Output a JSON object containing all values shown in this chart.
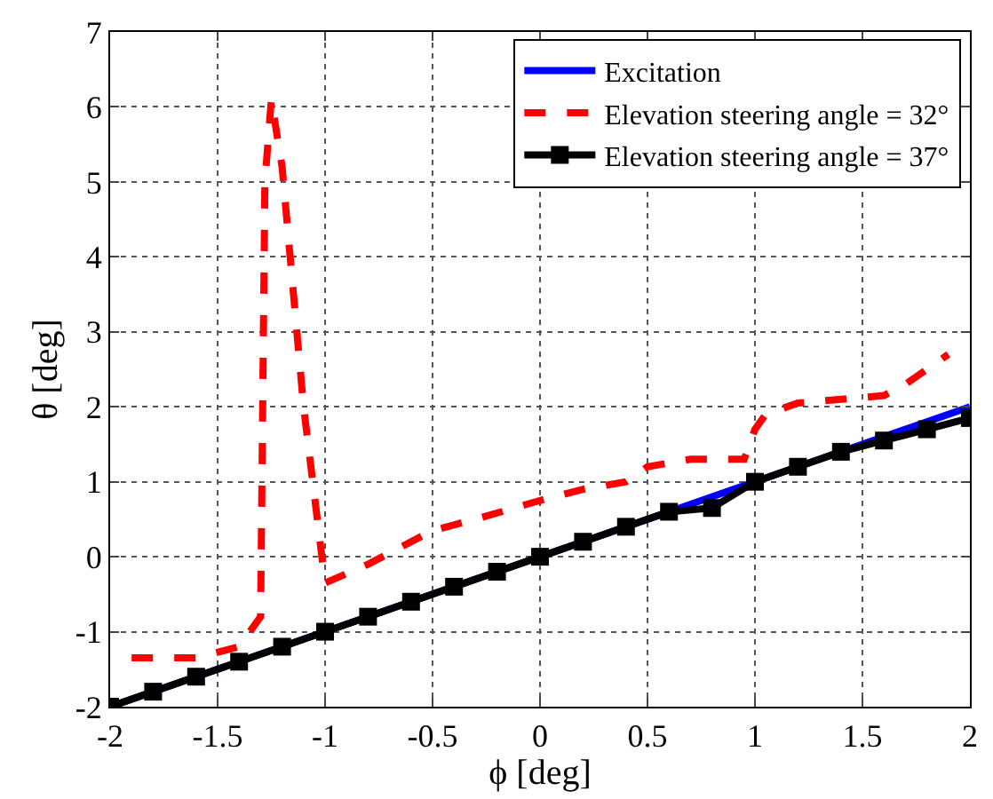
{
  "chart_data": {
    "type": "line",
    "xlabel": "ϕ [deg]",
    "ylabel": "θ [deg]",
    "xlim": [
      -2,
      2
    ],
    "ylim": [
      -2,
      7
    ],
    "xticks": [
      -2,
      -1.5,
      -1,
      -0.5,
      0,
      0.5,
      1,
      1.5,
      2
    ],
    "yticks": [
      -2,
      -1,
      0,
      1,
      2,
      3,
      4,
      5,
      6,
      7
    ],
    "grid": true,
    "legend": "top right",
    "series": [
      {
        "name": "Excitation",
        "color": "#0000ff",
        "line_style": "solid",
        "marker": "none",
        "x": [
          -2,
          2
        ],
        "values": [
          -2,
          2
        ]
      },
      {
        "name": "Elevation steering angle = 32°",
        "color": "#ff0000",
        "line_style": "dashed",
        "marker": "none",
        "x": [
          -1.9,
          -1.6,
          -1.4,
          -1.3,
          -1.28,
          -1.25,
          -1.2,
          -1.1,
          -1.0,
          -0.8,
          -0.5,
          -0.3,
          0,
          0.2,
          0.4,
          0.5,
          0.7,
          0.95,
          1.0,
          1.05,
          1.2,
          1.6,
          1.7,
          1.9
        ],
        "values": [
          -1.35,
          -1.35,
          -1.2,
          -0.8,
          5,
          6.1,
          5.2,
          2,
          -0.35,
          -0.1,
          0.35,
          0.5,
          0.75,
          0.9,
          1.0,
          1.2,
          1.3,
          1.3,
          1.7,
          1.9,
          2.05,
          2.15,
          2.3,
          2.7
        ]
      },
      {
        "name": "Elevation steering angle = 37°",
        "color": "#000000",
        "line_style": "solid",
        "marker": "square",
        "x": [
          -2,
          -1.8,
          -1.6,
          -1.4,
          -1.2,
          -1,
          -0.8,
          -0.6,
          -0.4,
          -0.2,
          0,
          0.2,
          0.4,
          0.6,
          0.8,
          1,
          1.2,
          1.4,
          1.6,
          1.8,
          2
        ],
        "values": [
          -2,
          -1.8,
          -1.6,
          -1.4,
          -1.2,
          -1,
          -0.8,
          -0.6,
          -0.4,
          -0.2,
          0,
          0.2,
          0.4,
          0.6,
          0.65,
          1,
          1.2,
          1.4,
          1.55,
          1.7,
          1.85
        ]
      }
    ]
  }
}
